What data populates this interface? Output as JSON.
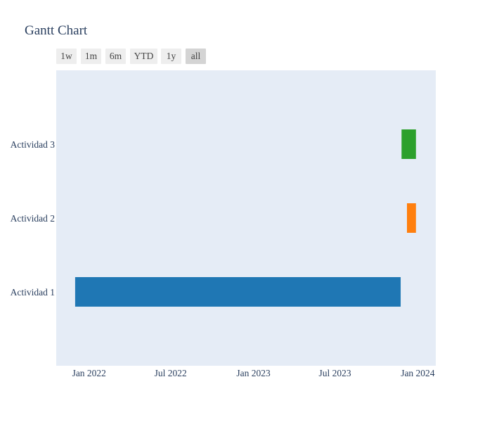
{
  "chart_data": {
    "type": "gantt",
    "title": "Gantt Chart",
    "xlabel": "",
    "ylabel": "",
    "x_axis": {
      "type": "date",
      "range": [
        "2021-10-20",
        "2024-02-10"
      ],
      "ticks": [
        {
          "value": "2022-01-01",
          "label": "Jan 2022"
        },
        {
          "value": "2022-07-01",
          "label": "Jul 2022"
        },
        {
          "value": "2023-01-01",
          "label": "Jan 2023"
        },
        {
          "value": "2023-07-01",
          "label": "Jul 2023"
        },
        {
          "value": "2024-01-01",
          "label": "Jan 2024"
        }
      ],
      "grid": false
    },
    "y_axis": {
      "categories": [
        "Actividad 1",
        "Actividad 2",
        "Actividad 3"
      ]
    },
    "tasks": [
      {
        "task": "Actividad 1",
        "start": "2021-12-01",
        "finish": "2023-11-24",
        "color": "#1f77b4"
      },
      {
        "task": "Actividad 2",
        "start": "2023-12-08",
        "finish": "2023-12-28",
        "color": "#ff7f0e"
      },
      {
        "task": "Actividad 3",
        "start": "2023-11-26",
        "finish": "2023-12-28",
        "color": "#2ca02c"
      }
    ],
    "plot_background": "#e5ecf6",
    "range_selector": {
      "buttons": [
        "1w",
        "1m",
        "6m",
        "YTD",
        "1y",
        "all"
      ],
      "active": "all"
    }
  }
}
